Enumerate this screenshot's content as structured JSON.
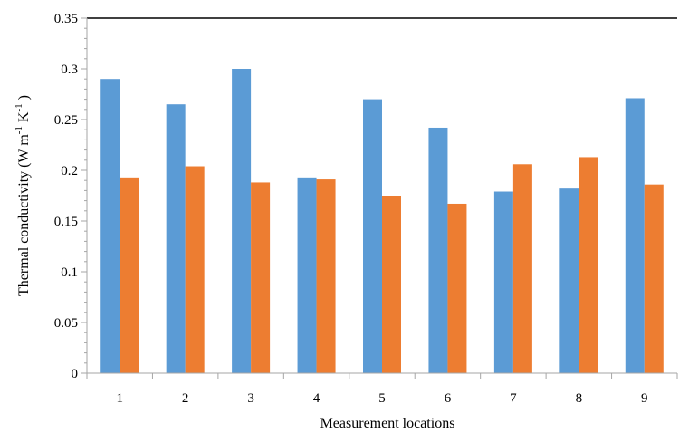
{
  "chart_data": {
    "type": "bar",
    "title": "",
    "xlabel": "Measurement locations",
    "ylabel": {
      "main": "Thermal conductivity (W m",
      "sup1": "-1",
      "mid": "  K",
      "sup2": "-1",
      "end": " )"
    },
    "categories": [
      "1",
      "2",
      "3",
      "4",
      "5",
      "6",
      "7",
      "8",
      "9"
    ],
    "series": [
      {
        "color": "#5b9bd5",
        "values": [
          0.29,
          0.265,
          0.3,
          0.193,
          0.27,
          0.242,
          0.179,
          0.182,
          0.271
        ]
      },
      {
        "color": "#ed7d31",
        "values": [
          0.193,
          0.204,
          0.188,
          0.191,
          0.175,
          0.167,
          0.206,
          0.213,
          0.186
        ]
      }
    ],
    "ylim": [
      0,
      0.35
    ],
    "yticks": [
      "0",
      "0.05",
      "0.1",
      "0.15",
      "0.2",
      "0.25",
      "0.3",
      "0.35"
    ],
    "ytick_values": [
      0,
      0.05,
      0.1,
      0.15,
      0.2,
      0.25,
      0.3,
      0.35
    ],
    "grid": false,
    "legend": "none"
  }
}
